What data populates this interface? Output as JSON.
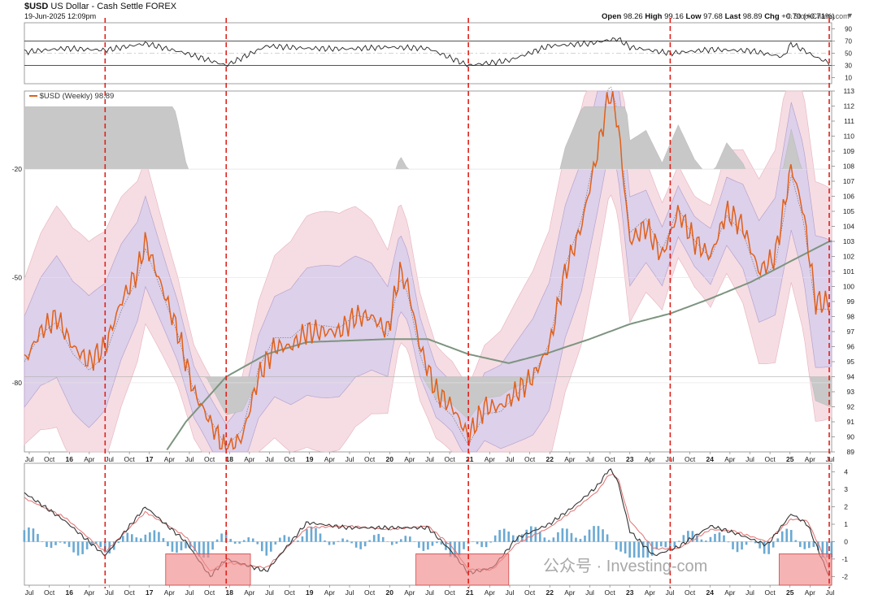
{
  "header": {
    "symbol": "$USD",
    "name": "US Dollar - Cash Settle FOREX",
    "date": "19-Jun-2025 12:09pm",
    "brand": "© StockCharts.com",
    "open_label": "Open",
    "open": "98.26",
    "high_label": "High",
    "high": "99.16",
    "low_label": "Low",
    "low": "97.68",
    "last_label": "Last",
    "last": "98.89",
    "chg_label": "Chg",
    "chg": "+0.70 (+0.71%)"
  },
  "legend": {
    "series": "$USD (Weekly) 98.89"
  },
  "watermark": {
    "text": "公众号 · Investing-com"
  },
  "colors": {
    "price": "#e0601a",
    "ma": "#7d9480",
    "band_outer": "#f6dde3",
    "band_inner": "#ddd0ea",
    "hist": "#6aa9d3",
    "signal_red": "#e0211b",
    "highlight": "#f08b8b",
    "grey_fill": "#c8c8c8"
  },
  "chart_data": [
    {
      "type": "line",
      "panel": "rsi",
      "title": "",
      "y_ticks": [
        "90",
        "70",
        "50",
        "30",
        "10"
      ],
      "ylim": [
        0,
        100
      ],
      "bands": [
        70,
        50,
        30
      ],
      "x": [
        2015.5,
        2016.0,
        2016.5,
        2017.0,
        2017.5,
        2018.0,
        2018.5,
        2019.0,
        2019.5,
        2020.0,
        2020.5,
        2021.0,
        2021.5,
        2022.0,
        2022.5,
        2022.85,
        2023.0,
        2023.5,
        2024.0,
        2024.5,
        2024.9,
        2025.0,
        2025.3,
        2025.47
      ],
      "values": [
        52,
        58,
        55,
        66,
        50,
        30,
        62,
        58,
        57,
        60,
        58,
        30,
        38,
        62,
        66,
        74,
        60,
        50,
        56,
        54,
        44,
        66,
        44,
        34
      ]
    },
    {
      "type": "line",
      "panel": "price",
      "series": [
        {
          "name": "$USD (Weekly) 98.89",
          "x": [
            2015.5,
            2015.7,
            2015.9,
            2016.1,
            2016.3,
            2016.5,
            2016.7,
            2016.9,
            2017.0,
            2017.2,
            2017.4,
            2017.6,
            2017.8,
            2018.0,
            2018.2,
            2018.4,
            2018.6,
            2018.8,
            2019.0,
            2019.2,
            2019.4,
            2019.6,
            2019.8,
            2020.0,
            2020.15,
            2020.25,
            2020.4,
            2020.6,
            2020.8,
            2021.0,
            2021.2,
            2021.4,
            2021.6,
            2021.8,
            2022.0,
            2022.2,
            2022.4,
            2022.6,
            2022.75,
            2022.85,
            2023.0,
            2023.2,
            2023.4,
            2023.6,
            2023.8,
            2024.0,
            2024.2,
            2024.4,
            2024.6,
            2024.8,
            2025.0,
            2025.15,
            2025.3,
            2025.47
          ],
          "values": [
            95,
            97,
            98,
            96,
            95,
            96,
            99,
            101,
            103,
            100,
            97,
            93,
            91,
            89,
            90,
            94,
            96,
            96,
            97,
            97,
            97,
            98,
            98,
            97,
            101,
            100,
            96,
            93,
            92,
            90,
            92,
            92,
            93,
            94,
            96,
            101,
            104,
            109,
            113,
            111,
            103,
            104,
            102,
            105,
            103,
            102,
            105,
            104,
            101,
            102,
            108,
            105,
            99,
            98.89
          ]
        },
        {
          "name": "",
          "x": [
            2015.5,
            2016.5,
            2017.0,
            2017.5,
            2018.0,
            2018.5,
            2019.0,
            2019.5,
            2020.0,
            2020.5,
            2021.0,
            2021.5,
            2022.0,
            2022.5,
            2023.0,
            2023.5,
            2024.0,
            2024.5,
            2025.0,
            2025.47
          ],
          "values": [
            82,
            86,
            87,
            91,
            94,
            95.5,
            96.3,
            96.4,
            96.5,
            96.5,
            95.5,
            94.9,
            95.6,
            96.5,
            97.5,
            98.2,
            99.2,
            100.3,
            101.7,
            103
          ]
        }
      ],
      "x_ticks": [
        "Jul",
        "Oct",
        "16",
        "Apr",
        "Jul",
        "Oct",
        "17",
        "Apr",
        "Jul",
        "Oct",
        "18",
        "Apr",
        "Jul",
        "Oct",
        "19",
        "Apr",
        "Jul",
        "Oct",
        "20",
        "Apr",
        "Jul",
        "Oct",
        "21",
        "Apr",
        "Jul",
        "Oct",
        "22",
        "Apr",
        "Jul",
        "Oct",
        "23",
        "Apr",
        "Jul",
        "Oct",
        "24",
        "Apr",
        "Jul",
        "Oct",
        "25",
        "Apr",
        "Jul"
      ],
      "y_ticks_right": [
        "113",
        "112",
        "111",
        "110",
        "109",
        "108",
        "107",
        "106",
        "105",
        "104",
        "103",
        "102",
        "101",
        "100",
        "99",
        "98",
        "97",
        "96",
        "95",
        "94",
        "93",
        "92",
        "91",
        "90",
        "89"
      ],
      "y_ticks_left": [
        "-20",
        "-50",
        "-80"
      ],
      "ylim": [
        89,
        113
      ]
    },
    {
      "type": "line",
      "panel": "macd",
      "series": [
        {
          "name": "",
          "x": [
            2015.5,
            2016.0,
            2016.5,
            2017.0,
            2017.5,
            2017.8,
            2018.0,
            2018.5,
            2019.0,
            2019.5,
            2020.0,
            2020.5,
            2020.8,
            2021.0,
            2021.3,
            2021.6,
            2022.0,
            2022.3,
            2022.6,
            2022.75,
            2022.85,
            2023.0,
            2023.3,
            2023.6,
            2024.0,
            2024.3,
            2024.7,
            2025.0,
            2025.2,
            2025.47
          ],
          "values": [
            2.8,
            1.2,
            -0.8,
            2.0,
            0.0,
            -2.0,
            -1.0,
            -1.7,
            1.1,
            0.8,
            0.8,
            0.8,
            -0.6,
            -1.8,
            -1.5,
            0.2,
            1.0,
            2.0,
            3.2,
            4.2,
            3.5,
            0.6,
            -0.8,
            -0.3,
            0.9,
            0.5,
            -0.2,
            1.6,
            1.0,
            -2.0
          ]
        },
        {
          "name": "",
          "x": [
            2015.5,
            2016.0,
            2016.5,
            2017.0,
            2017.5,
            2017.8,
            2018.0,
            2018.5,
            2019.0,
            2019.5,
            2020.0,
            2020.5,
            2020.8,
            2021.0,
            2021.3,
            2021.6,
            2022.0,
            2022.3,
            2022.6,
            2022.75,
            2022.85,
            2023.0,
            2023.3,
            2023.6,
            2024.0,
            2024.3,
            2024.7,
            2025.0,
            2025.2,
            2025.47
          ],
          "values": [
            2.5,
            1.4,
            -0.6,
            1.7,
            0.3,
            -1.7,
            -1.2,
            -1.5,
            0.8,
            0.9,
            0.7,
            0.9,
            -0.3,
            -1.6,
            -1.6,
            -0.1,
            0.8,
            1.8,
            2.9,
            3.9,
            3.7,
            1.2,
            -0.4,
            -0.4,
            0.7,
            0.6,
            0.0,
            1.3,
            1.2,
            -1.5
          ]
        }
      ],
      "y_ticks": [
        "4",
        "3",
        "2",
        "1",
        "0",
        "-1",
        "-2"
      ],
      "ylim": [
        -2.5,
        4.5
      ],
      "x_ticks": [
        "Jul",
        "Oct",
        "16",
        "Apr",
        "Jul",
        "Oct",
        "17",
        "Apr",
        "Jul",
        "Oct",
        "18",
        "Apr",
        "Jul",
        "Oct",
        "19",
        "Apr",
        "Jul",
        "Oct",
        "20",
        "Apr",
        "Jul",
        "Oct",
        "21",
        "Apr",
        "Jul",
        "Oct",
        "22",
        "Apr",
        "Jul",
        "Oct",
        "23",
        "Apr",
        "Jul",
        "Oct",
        "24",
        "Apr",
        "Jul",
        "Oct",
        "25",
        "Apr",
        "Jul"
      ]
    }
  ],
  "signal_lines": [
    2016.5,
    2018.0,
    2021.0,
    2023.5,
    2025.47
  ],
  "highlights": [
    [
      2017.25,
      2018.3
    ],
    [
      2020.35,
      2021.5
    ],
    [
      2024.85,
      2025.5
    ]
  ],
  "xlim": [
    2015.5,
    2025.5
  ]
}
